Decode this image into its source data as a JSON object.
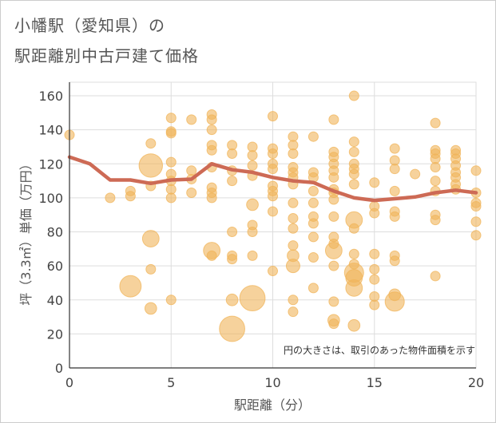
{
  "title_line1": "小幡駅（愛知県）の",
  "title_line2": "駅距離別中古戸建て価格",
  "note": "円の大きさは、取引のあった物件面積を示す",
  "colors": {
    "bubble": "#f0b45a",
    "line": "#cd6a55",
    "grid": "#dddddd",
    "axis": "#333333"
  },
  "chart_data": {
    "type": "scatter",
    "xlabel": "駅距離（分）",
    "ylabel": "坪（3.3㎡）単価（万円）",
    "xlim": [
      0,
      20
    ],
    "ylim": [
      0,
      168
    ],
    "xticks": [
      0,
      5,
      10,
      15,
      20
    ],
    "yticks": [
      0,
      20,
      40,
      60,
      80,
      100,
      120,
      140,
      160
    ],
    "grid": true,
    "points": [
      {
        "x": 0,
        "y": 137,
        "s": 1
      },
      {
        "x": 2,
        "y": 100,
        "s": 1
      },
      {
        "x": 3,
        "y": 104,
        "s": 1
      },
      {
        "x": 3,
        "y": 101,
        "s": 1
      },
      {
        "x": 3,
        "y": 48,
        "s": 5
      },
      {
        "x": 4,
        "y": 132,
        "s": 1
      },
      {
        "x": 4,
        "y": 119,
        "s": 6
      },
      {
        "x": 4,
        "y": 107,
        "s": 1
      },
      {
        "x": 4,
        "y": 76,
        "s": 3
      },
      {
        "x": 4,
        "y": 58,
        "s": 1
      },
      {
        "x": 4,
        "y": 35,
        "s": 1.5
      },
      {
        "x": 5,
        "y": 147,
        "s": 1
      },
      {
        "x": 5,
        "y": 139,
        "s": 1
      },
      {
        "x": 5,
        "y": 138,
        "s": 1
      },
      {
        "x": 5,
        "y": 121,
        "s": 1
      },
      {
        "x": 5,
        "y": 114,
        "s": 1
      },
      {
        "x": 5,
        "y": 110,
        "s": 1
      },
      {
        "x": 5,
        "y": 105,
        "s": 1
      },
      {
        "x": 5,
        "y": 100,
        "s": 1
      },
      {
        "x": 5,
        "y": 40,
        "s": 1
      },
      {
        "x": 6,
        "y": 146,
        "s": 1
      },
      {
        "x": 6,
        "y": 116,
        "s": 1
      },
      {
        "x": 6,
        "y": 111,
        "s": 1
      },
      {
        "x": 6,
        "y": 103,
        "s": 1
      },
      {
        "x": 7,
        "y": 149,
        "s": 1
      },
      {
        "x": 7,
        "y": 146,
        "s": 1
      },
      {
        "x": 7,
        "y": 140,
        "s": 1
      },
      {
        "x": 7,
        "y": 131,
        "s": 1
      },
      {
        "x": 7,
        "y": 128,
        "s": 1
      },
      {
        "x": 7,
        "y": 118,
        "s": 1
      },
      {
        "x": 7,
        "y": 106,
        "s": 1
      },
      {
        "x": 7,
        "y": 103,
        "s": 1
      },
      {
        "x": 7,
        "y": 100,
        "s": 1
      },
      {
        "x": 7,
        "y": 69,
        "s": 3
      },
      {
        "x": 7,
        "y": 66,
        "s": 1
      },
      {
        "x": 8,
        "y": 131,
        "s": 1
      },
      {
        "x": 8,
        "y": 126,
        "s": 1
      },
      {
        "x": 8,
        "y": 116,
        "s": 1
      },
      {
        "x": 8,
        "y": 110,
        "s": 1
      },
      {
        "x": 8,
        "y": 80,
        "s": 1
      },
      {
        "x": 8,
        "y": 66,
        "s": 1
      },
      {
        "x": 8,
        "y": 64,
        "s": 1
      },
      {
        "x": 8,
        "y": 40,
        "s": 1.5
      },
      {
        "x": 8,
        "y": 23,
        "s": 7
      },
      {
        "x": 9,
        "y": 130,
        "s": 1
      },
      {
        "x": 9,
        "y": 125,
        "s": 1
      },
      {
        "x": 9,
        "y": 119,
        "s": 1
      },
      {
        "x": 9,
        "y": 113,
        "s": 1
      },
      {
        "x": 9,
        "y": 96,
        "s": 1.5
      },
      {
        "x": 9,
        "y": 84,
        "s": 1
      },
      {
        "x": 9,
        "y": 80,
        "s": 1
      },
      {
        "x": 9,
        "y": 66,
        "s": 1
      },
      {
        "x": 9,
        "y": 41,
        "s": 7
      },
      {
        "x": 10,
        "y": 148,
        "s": 1
      },
      {
        "x": 10,
        "y": 129,
        "s": 1
      },
      {
        "x": 10,
        "y": 126,
        "s": 1
      },
      {
        "x": 10,
        "y": 120,
        "s": 1
      },
      {
        "x": 10,
        "y": 117,
        "s": 1
      },
      {
        "x": 10,
        "y": 107,
        "s": 1
      },
      {
        "x": 10,
        "y": 104,
        "s": 1
      },
      {
        "x": 10,
        "y": 101,
        "s": 1
      },
      {
        "x": 10,
        "y": 92,
        "s": 1
      },
      {
        "x": 10,
        "y": 57,
        "s": 1
      },
      {
        "x": 11,
        "y": 136,
        "s": 1
      },
      {
        "x": 11,
        "y": 131,
        "s": 1
      },
      {
        "x": 11,
        "y": 126,
        "s": 1
      },
      {
        "x": 11,
        "y": 118,
        "s": 1
      },
      {
        "x": 11,
        "y": 115,
        "s": 1
      },
      {
        "x": 11,
        "y": 112,
        "s": 1
      },
      {
        "x": 11,
        "y": 108,
        "s": 1
      },
      {
        "x": 11,
        "y": 97,
        "s": 1
      },
      {
        "x": 11,
        "y": 88,
        "s": 1
      },
      {
        "x": 11,
        "y": 82,
        "s": 1
      },
      {
        "x": 11,
        "y": 72,
        "s": 1
      },
      {
        "x": 11,
        "y": 66,
        "s": 1.5
      },
      {
        "x": 11,
        "y": 60,
        "s": 2
      },
      {
        "x": 11,
        "y": 40,
        "s": 1
      },
      {
        "x": 11,
        "y": 33,
        "s": 1
      },
      {
        "x": 12,
        "y": 136,
        "s": 1
      },
      {
        "x": 12,
        "y": 115,
        "s": 1
      },
      {
        "x": 12,
        "y": 112,
        "s": 1
      },
      {
        "x": 12,
        "y": 104,
        "s": 1
      },
      {
        "x": 12,
        "y": 97,
        "s": 1
      },
      {
        "x": 12,
        "y": 89,
        "s": 1
      },
      {
        "x": 12,
        "y": 85,
        "s": 1
      },
      {
        "x": 12,
        "y": 77,
        "s": 1
      },
      {
        "x": 12,
        "y": 65,
        "s": 1
      },
      {
        "x": 12,
        "y": 47,
        "s": 1
      },
      {
        "x": 13,
        "y": 146,
        "s": 1
      },
      {
        "x": 13,
        "y": 127,
        "s": 1
      },
      {
        "x": 13,
        "y": 124,
        "s": 1
      },
      {
        "x": 13,
        "y": 120,
        "s": 1
      },
      {
        "x": 13,
        "y": 116,
        "s": 1
      },
      {
        "x": 13,
        "y": 112,
        "s": 1
      },
      {
        "x": 13,
        "y": 105,
        "s": 1
      },
      {
        "x": 13,
        "y": 103,
        "s": 1
      },
      {
        "x": 13,
        "y": 99,
        "s": 1
      },
      {
        "x": 13,
        "y": 89,
        "s": 1
      },
      {
        "x": 13,
        "y": 77,
        "s": 1
      },
      {
        "x": 13,
        "y": 73,
        "s": 1
      },
      {
        "x": 13,
        "y": 69,
        "s": 3
      },
      {
        "x": 13,
        "y": 60,
        "s": 1
      },
      {
        "x": 13,
        "y": 39,
        "s": 1
      },
      {
        "x": 13,
        "y": 28,
        "s": 1.5
      },
      {
        "x": 13,
        "y": 26,
        "s": 1
      },
      {
        "x": 14,
        "y": 160,
        "s": 1
      },
      {
        "x": 14,
        "y": 133,
        "s": 1
      },
      {
        "x": 14,
        "y": 127,
        "s": 1
      },
      {
        "x": 14,
        "y": 120,
        "s": 1
      },
      {
        "x": 14,
        "y": 117,
        "s": 1
      },
      {
        "x": 14,
        "y": 114,
        "s": 1
      },
      {
        "x": 14,
        "y": 108,
        "s": 1
      },
      {
        "x": 14,
        "y": 87,
        "s": 3
      },
      {
        "x": 14,
        "y": 82,
        "s": 1
      },
      {
        "x": 14,
        "y": 67,
        "s": 1
      },
      {
        "x": 14,
        "y": 61,
        "s": 1
      },
      {
        "x": 14,
        "y": 56,
        "s": 4
      },
      {
        "x": 14,
        "y": 53,
        "s": 3
      },
      {
        "x": 14,
        "y": 47,
        "s": 3
      },
      {
        "x": 14,
        "y": 25,
        "s": 1.5
      },
      {
        "x": 15,
        "y": 109,
        "s": 1
      },
      {
        "x": 15,
        "y": 95,
        "s": 1
      },
      {
        "x": 15,
        "y": 91,
        "s": 1
      },
      {
        "x": 15,
        "y": 67,
        "s": 1
      },
      {
        "x": 15,
        "y": 58,
        "s": 1
      },
      {
        "x": 15,
        "y": 52,
        "s": 1
      },
      {
        "x": 15,
        "y": 42,
        "s": 1
      },
      {
        "x": 15,
        "y": 37,
        "s": 1
      },
      {
        "x": 16,
        "y": 129,
        "s": 1
      },
      {
        "x": 16,
        "y": 122,
        "s": 1
      },
      {
        "x": 16,
        "y": 117,
        "s": 1
      },
      {
        "x": 16,
        "y": 104,
        "s": 1
      },
      {
        "x": 16,
        "y": 92,
        "s": 1
      },
      {
        "x": 16,
        "y": 89,
        "s": 1
      },
      {
        "x": 16,
        "y": 66,
        "s": 1
      },
      {
        "x": 16,
        "y": 63,
        "s": 1
      },
      {
        "x": 16,
        "y": 43,
        "s": 1.5
      },
      {
        "x": 16,
        "y": 39,
        "s": 4
      },
      {
        "x": 17,
        "y": 114,
        "s": 1
      },
      {
        "x": 18,
        "y": 144,
        "s": 1
      },
      {
        "x": 18,
        "y": 128,
        "s": 1
      },
      {
        "x": 18,
        "y": 126,
        "s": 1
      },
      {
        "x": 18,
        "y": 123,
        "s": 1
      },
      {
        "x": 18,
        "y": 118,
        "s": 1
      },
      {
        "x": 18,
        "y": 110,
        "s": 1
      },
      {
        "x": 18,
        "y": 104,
        "s": 1
      },
      {
        "x": 18,
        "y": 90,
        "s": 1
      },
      {
        "x": 18,
        "y": 87,
        "s": 1
      },
      {
        "x": 18,
        "y": 54,
        "s": 1
      },
      {
        "x": 19,
        "y": 128,
        "s": 1
      },
      {
        "x": 19,
        "y": 126,
        "s": 1
      },
      {
        "x": 19,
        "y": 123,
        "s": 1
      },
      {
        "x": 19,
        "y": 119,
        "s": 1
      },
      {
        "x": 19,
        "y": 115,
        "s": 1
      },
      {
        "x": 19,
        "y": 112,
        "s": 1
      },
      {
        "x": 19,
        "y": 108,
        "s": 1
      },
      {
        "x": 19,
        "y": 105,
        "s": 1
      },
      {
        "x": 20,
        "y": 116,
        "s": 1
      },
      {
        "x": 20,
        "y": 103,
        "s": 1
      },
      {
        "x": 20,
        "y": 97,
        "s": 1
      },
      {
        "x": 20,
        "y": 95,
        "s": 1
      },
      {
        "x": 20,
        "y": 86,
        "s": 1
      },
      {
        "x": 20,
        "y": 78,
        "s": 1
      }
    ],
    "trend": {
      "x": [
        0,
        1,
        2,
        3,
        4,
        5,
        6,
        7,
        8,
        9,
        10,
        11,
        12,
        13,
        14,
        15,
        16,
        17,
        18,
        19,
        20
      ],
      "y": [
        124,
        120,
        110.5,
        110.5,
        108.5,
        110.5,
        111,
        120,
        116.5,
        115,
        112,
        110,
        109,
        104,
        100,
        98.5,
        99.5,
        100.5,
        103,
        104.5,
        103
      ]
    }
  }
}
